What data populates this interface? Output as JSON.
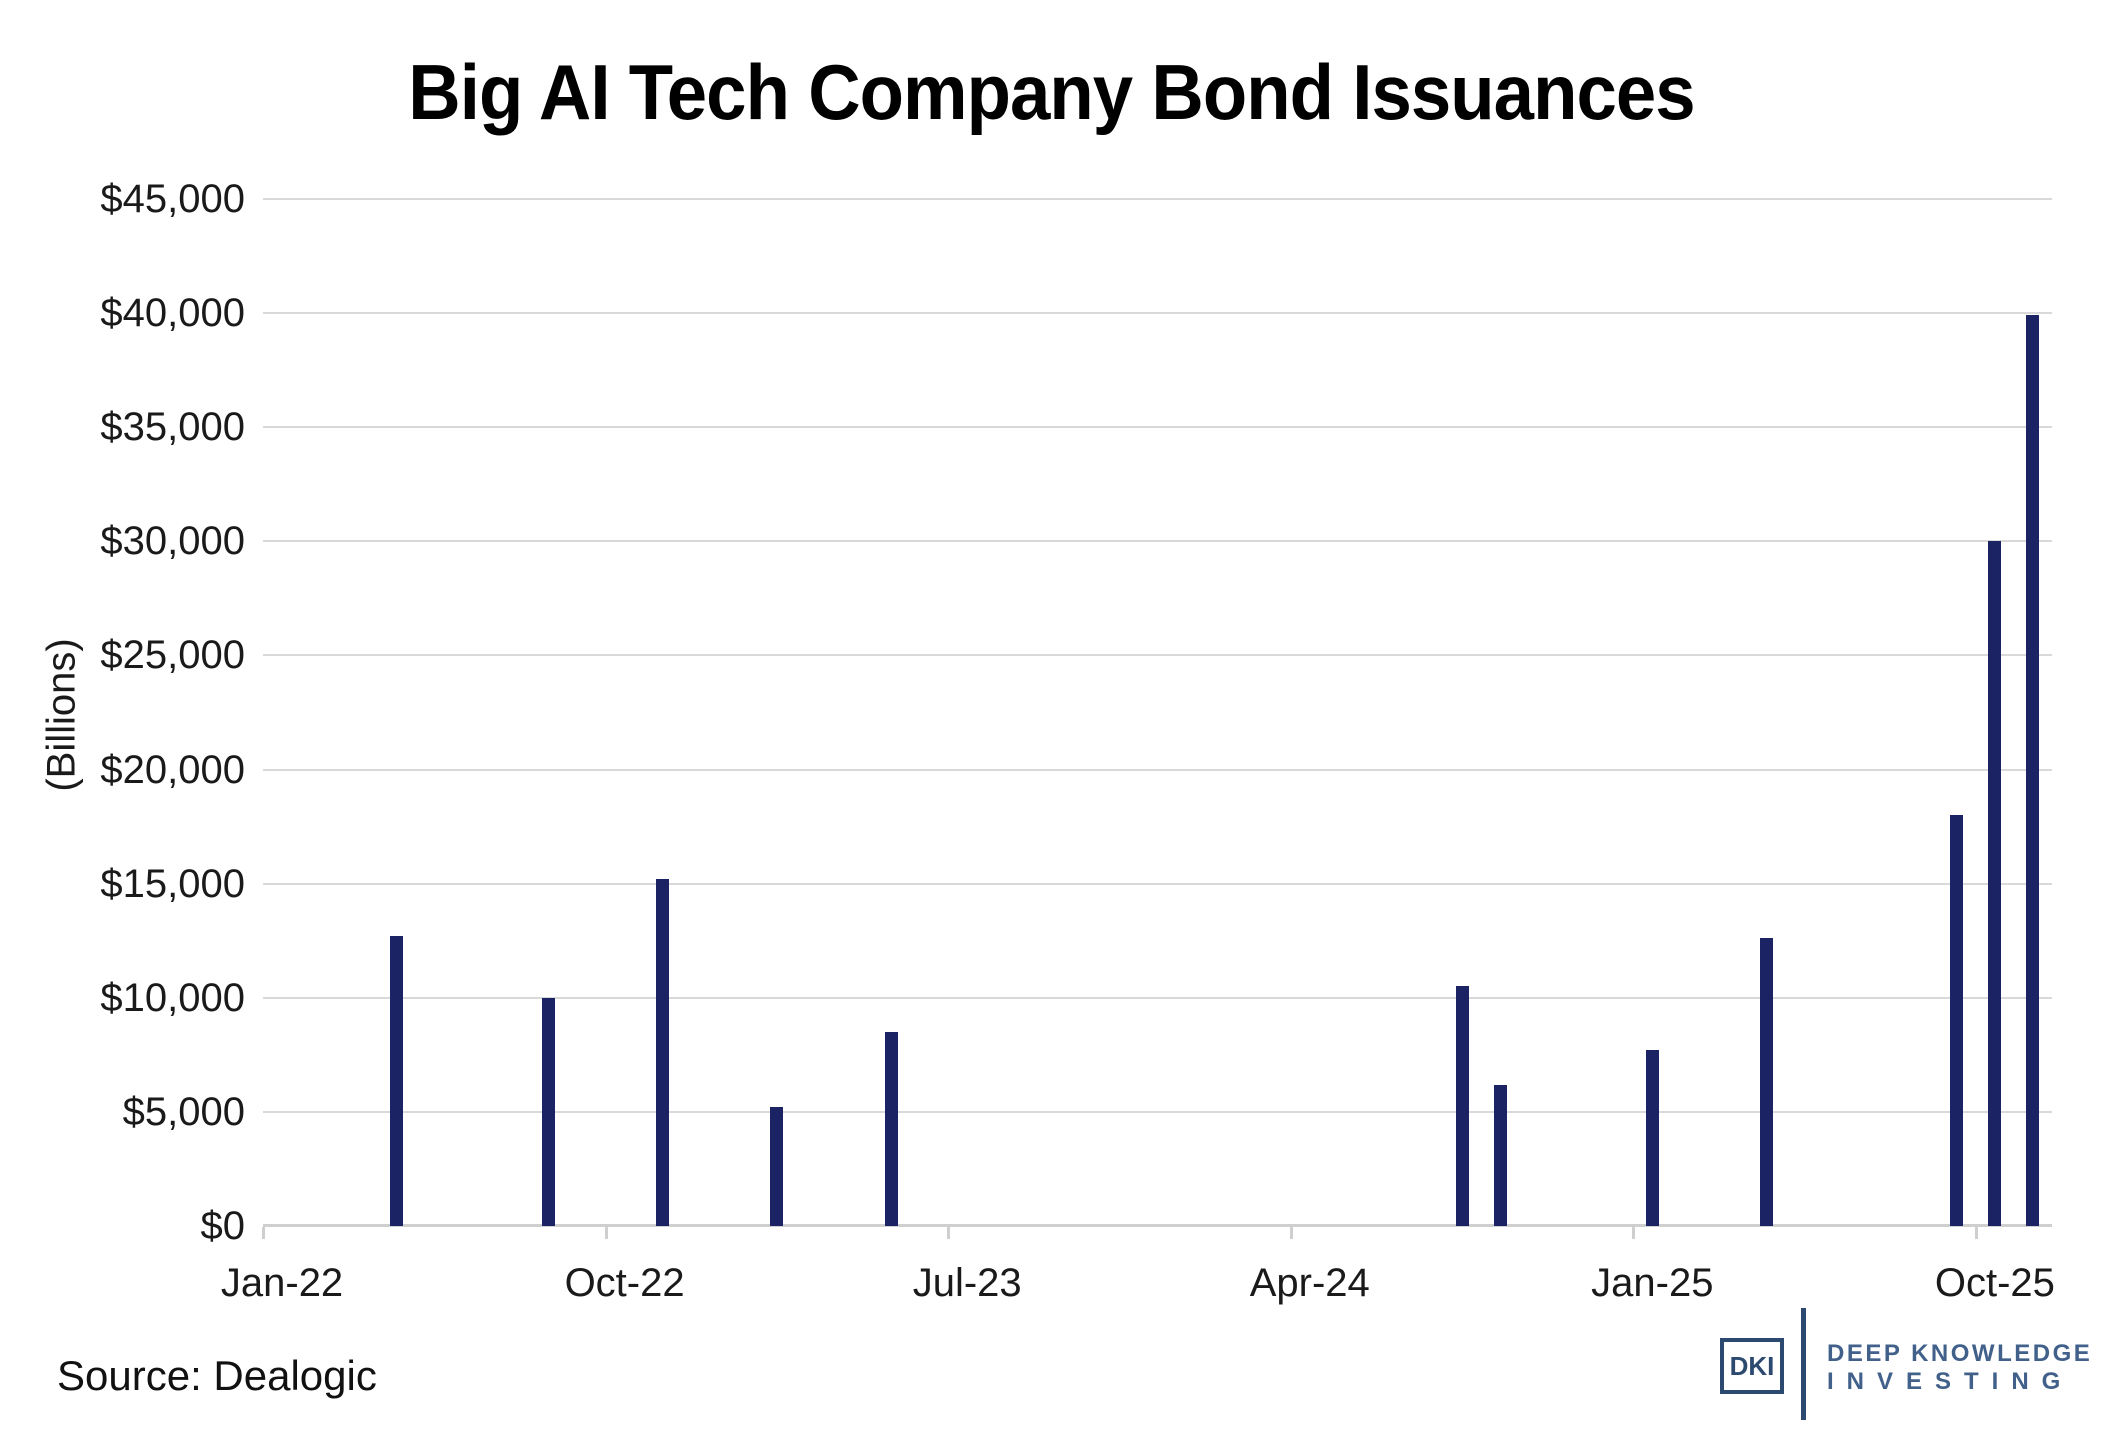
{
  "title": "Big AI Tech Company Bond Issuances",
  "source_note": "Source: Dealogic",
  "logo": {
    "badge": "DKI",
    "line1": "DEEP KNOWLEDGE",
    "line2": "INVESTING"
  },
  "colors": {
    "bar": "#1b2365",
    "gridline": "#d9d9d9",
    "axis_line": "#cfcfcf",
    "logo_navy": "#2c4a70",
    "logo_text": "#41608a"
  },
  "chart_data": {
    "type": "bar",
    "title": "Big AI Tech Company Bond Issuances",
    "xlabel": "",
    "ylabel": "(Billions)",
    "ylim": [
      0,
      45000
    ],
    "y_tick_step": 5000,
    "grid": true,
    "legend": false,
    "y_ticks": [
      {
        "label": "$45,000",
        "value": 45000
      },
      {
        "label": "$40,000",
        "value": 40000
      },
      {
        "label": "$35,000",
        "value": 35000
      },
      {
        "label": "$30,000",
        "value": 30000
      },
      {
        "label": "$25,000",
        "value": 25000
      },
      {
        "label": "$20,000",
        "value": 20000
      },
      {
        "label": "$15,000",
        "value": 15000
      },
      {
        "label": "$10,000",
        "value": 10000
      },
      {
        "label": "$5,000",
        "value": 5000
      },
      {
        "label": "$0",
        "value": 0
      }
    ],
    "x_axis": {
      "first_month": "Jan-22",
      "last_month": "Nov-25",
      "month_count": 47
    },
    "x_tick_labels": [
      {
        "label": "Jan-22",
        "month_index": 0
      },
      {
        "label": "Oct-22",
        "month_index": 9
      },
      {
        "label": "Jul-23",
        "month_index": 18
      },
      {
        "label": "Apr-24",
        "month_index": 27
      },
      {
        "label": "Jan-25",
        "month_index": 36
      },
      {
        "label": "Oct-25",
        "month_index": 45
      }
    ],
    "points": [
      {
        "month": "Apr-22",
        "month_index": 3,
        "value": 12700
      },
      {
        "month": "Aug-22",
        "month_index": 7,
        "value": 10000
      },
      {
        "month": "Nov-22",
        "month_index": 10,
        "value": 15200
      },
      {
        "month": "Feb-23",
        "month_index": 13,
        "value": 5200
      },
      {
        "month": "May-23",
        "month_index": 16,
        "value": 8500
      },
      {
        "month": "Aug-24",
        "month_index": 31,
        "value": 10500
      },
      {
        "month": "Sep-24",
        "month_index": 32,
        "value": 6200
      },
      {
        "month": "Jan-25",
        "month_index": 36,
        "value": 7700
      },
      {
        "month": "Apr-25",
        "month_index": 39,
        "value": 12600
      },
      {
        "month": "Sep-25",
        "month_index": 44,
        "value": 18000
      },
      {
        "month": "Oct-25",
        "month_index": 45,
        "value": 30000
      },
      {
        "month": "Nov-25",
        "month_index": 46,
        "value": 39900
      }
    ]
  }
}
